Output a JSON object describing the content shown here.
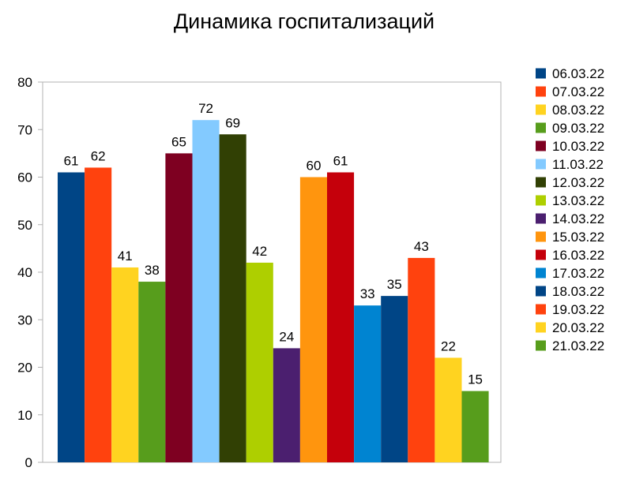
{
  "chart_data": {
    "type": "bar",
    "title": "Динамика госпитализаций",
    "xlabel": "",
    "ylabel": "",
    "ylim": [
      0,
      80
    ],
    "yticks": [
      0,
      10,
      20,
      30,
      40,
      50,
      60,
      70,
      80
    ],
    "grid": false,
    "legend_position": "right",
    "series": [
      {
        "name": "06.03.22",
        "value": 61,
        "color": "#004586"
      },
      {
        "name": "07.03.22",
        "value": 62,
        "color": "#ff420e"
      },
      {
        "name": "08.03.22",
        "value": 41,
        "color": "#ffd320"
      },
      {
        "name": "09.03.22",
        "value": 38,
        "color": "#579d1c"
      },
      {
        "name": "10.03.22",
        "value": 65,
        "color": "#7e0021"
      },
      {
        "name": "11.03.22",
        "value": 72,
        "color": "#83caff"
      },
      {
        "name": "12.03.22",
        "value": 69,
        "color": "#314004"
      },
      {
        "name": "13.03.22",
        "value": 42,
        "color": "#aecf00"
      },
      {
        "name": "14.03.22",
        "value": 24,
        "color": "#4b1f6f"
      },
      {
        "name": "15.03.22",
        "value": 60,
        "color": "#ff950e"
      },
      {
        "name": "16.03.22",
        "value": 61,
        "color": "#c5000b"
      },
      {
        "name": "17.03.22",
        "value": 33,
        "color": "#0084d1"
      },
      {
        "name": "18.03.22",
        "value": 35,
        "color": "#004586"
      },
      {
        "name": "19.03.22",
        "value": 43,
        "color": "#ff420e"
      },
      {
        "name": "20.03.22",
        "value": 22,
        "color": "#ffd320"
      },
      {
        "name": "21.03.22",
        "value": 15,
        "color": "#579d1c"
      }
    ]
  }
}
